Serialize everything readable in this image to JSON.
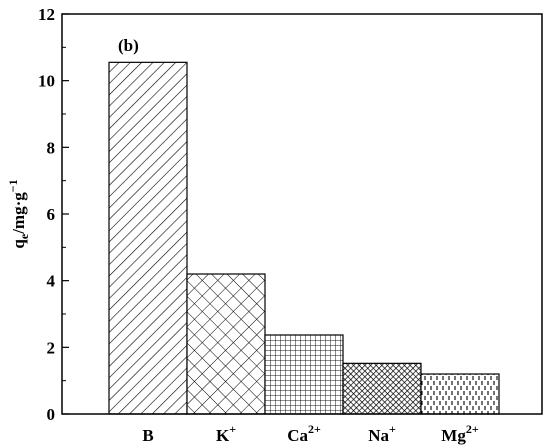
{
  "chart_data": {
    "type": "bar",
    "panel_label": "(b)",
    "ylabel": {
      "base": "q",
      "sub": "e",
      "rest": "/mg·g",
      "sup": "−1"
    },
    "categories": [
      {
        "base": "B",
        "sup": ""
      },
      {
        "base": "K",
        "sup": "+"
      },
      {
        "base": "Ca",
        "sup": "2+"
      },
      {
        "base": "Na",
        "sup": "+"
      },
      {
        "base": "Mg",
        "sup": "2+"
      }
    ],
    "values": [
      10.55,
      4.2,
      2.37,
      1.52,
      1.2
    ],
    "patterns": [
      "diagonal-hatch",
      "cross-hatch",
      "grid",
      "dense-crosshatch",
      "dashes"
    ],
    "ylim": [
      0,
      12
    ],
    "yticks": [
      "0",
      "2",
      "4",
      "6",
      "8",
      "10",
      "12"
    ],
    "grid": false,
    "legend": "none"
  }
}
